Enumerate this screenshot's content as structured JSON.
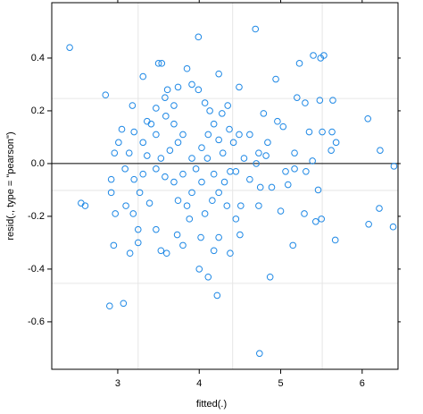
{
  "chart_data": {
    "type": "scatter",
    "x_label": "fitted(.)",
    "y_label": "resid(., type = \"pearson\")",
    "color": "#1e88e5",
    "xlim": [
      2.19,
      6.44
    ],
    "ylim": [
      -0.78,
      0.61
    ],
    "xticks": [
      3,
      4,
      5,
      6
    ],
    "yticks": [
      -0.6,
      -0.4,
      -0.2,
      {
        "value": 0,
        "label": "0.0"
      },
      0.2,
      0.4
    ],
    "reference_line": 0,
    "grid_x": [
      3.25,
      4.41,
      5.51
    ],
    "grid_y": [
      0.247,
      -0.102,
      -0.454
    ],
    "x": [
      2.41,
      3.99,
      4.69,
      2.85,
      4.74,
      2.9,
      3.07,
      4.22,
      4.0,
      4.87,
      6.08,
      6.21,
      6.38,
      6.39,
      6.22,
      6.07,
      5.68,
      5.53,
      5.4,
      5.49,
      5.23,
      2.55,
      2.6,
      2.95,
      3.15,
      3.25,
      5.15,
      5.67,
      5.5,
      5.46,
      4.45,
      4.38,
      4.11,
      4.5,
      4.24,
      3.31,
      3.5,
      3.54,
      3.85,
      4.24,
      4.49,
      4.94,
      3.91,
      3.99,
      4.07,
      4.79,
      4.96,
      5.03,
      5.2,
      5.3,
      5.48,
      5.64,
      5.35,
      5.51,
      5.63,
      5.62,
      5.17,
      5.06,
      5.09,
      5.31,
      4.82,
      4.84,
      4.7,
      4.75,
      4.62,
      4.73,
      5.0,
      3.18,
      3.05,
      3.01,
      2.96,
      2.92,
      2.92,
      2.97,
      3.1,
      3.19,
      3.27,
      3.36,
      3.31,
      3.39,
      3.47,
      3.53,
      3.6,
      3.73,
      3.8,
      3.88,
      3.91,
      3.96,
      4.03,
      4.11,
      4.18,
      4.28,
      4.37,
      4.42,
      4.38,
      4.31,
      4.24,
      4.16,
      4.07,
      4.02,
      4.18,
      4.51,
      4.45,
      4.55,
      4.49,
      3.8,
      3.69,
      3.59,
      3.47,
      3.58,
      3.69,
      3.74,
      3.64,
      3.53,
      3.47,
      3.58,
      3.69,
      3.8,
      3.91,
      3.41,
      3.31,
      3.2,
      3.14,
      3.09,
      3.2,
      3.25,
      3.74,
      3.85,
      4.18,
      4.29,
      4.24,
      4.1,
      4.03,
      4.34,
      4.62,
      4.73,
      4.89,
      5.17,
      5.39,
      5.43,
      5.29,
      3.61,
      3.74,
      3.36,
      3.47,
      4.13,
      4.35
    ],
    "values": [
      0.44,
      0.48,
      0.51,
      0.26,
      -0.72,
      -0.54,
      -0.53,
      -0.5,
      -0.4,
      -0.43,
      -0.23,
      -0.17,
      -0.24,
      -0.01,
      0.05,
      0.17,
      0.08,
      0.41,
      0.41,
      0.4,
      0.38,
      -0.15,
      -0.16,
      -0.31,
      -0.34,
      -0.3,
      -0.31,
      -0.29,
      -0.21,
      -0.1,
      -0.21,
      -0.34,
      -0.43,
      -0.27,
      -0.28,
      0.33,
      0.38,
      0.38,
      0.36,
      0.34,
      0.29,
      0.32,
      0.3,
      0.28,
      0.23,
      0.19,
      0.16,
      0.14,
      0.25,
      0.23,
      0.24,
      0.24,
      0.12,
      0.12,
      0.12,
      0.05,
      0.04,
      -0.03,
      -0.08,
      -0.03,
      0.03,
      0.08,
      0.0,
      -0.09,
      -0.06,
      -0.16,
      -0.18,
      0.22,
      0.13,
      0.08,
      0.04,
      -0.06,
      -0.11,
      -0.19,
      -0.16,
      -0.19,
      -0.11,
      0.03,
      -0.04,
      -0.15,
      -0.25,
      -0.33,
      -0.34,
      -0.27,
      -0.31,
      -0.21,
      -0.11,
      -0.02,
      0.06,
      0.11,
      0.15,
      0.19,
      0.13,
      0.08,
      -0.03,
      -0.07,
      -0.11,
      -0.14,
      -0.19,
      -0.28,
      -0.33,
      -0.16,
      -0.03,
      0.02,
      0.11,
      0.11,
      0.15,
      0.18,
      0.21,
      0.25,
      0.22,
      0.08,
      0.05,
      0.02,
      -0.02,
      -0.05,
      -0.07,
      -0.04,
      0.02,
      0.15,
      0.08,
      0.12,
      0.04,
      -0.02,
      -0.06,
      -0.25,
      -0.14,
      -0.16,
      -0.04,
      0.04,
      0.09,
      0.02,
      -0.07,
      -0.16,
      0.11,
      0.04,
      -0.09,
      -0.02,
      0.01,
      -0.22,
      -0.19,
      0.28,
      0.29,
      0.16,
      0.11,
      0.2,
      0.22
    ]
  }
}
